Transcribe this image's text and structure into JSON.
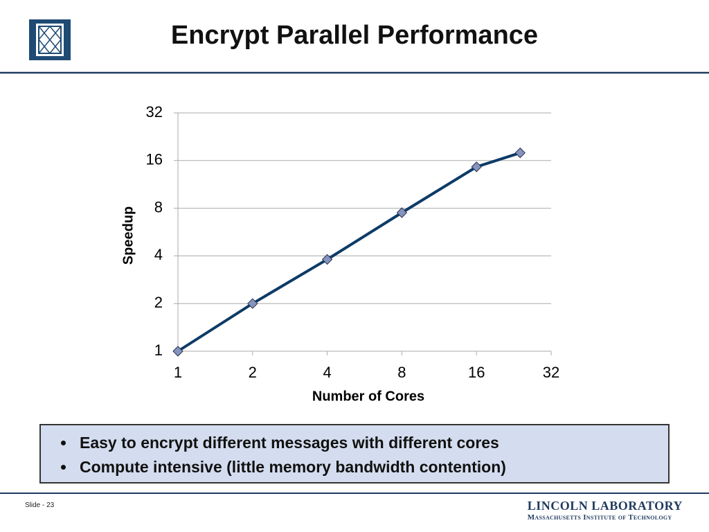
{
  "chart_data": {
    "type": "line",
    "title": "Encrypt Parallel Performance",
    "x": [
      1,
      2,
      4,
      8,
      16,
      24
    ],
    "values": [
      1,
      2,
      3.8,
      7.5,
      14.6,
      17.9
    ],
    "color": "#0d3b66",
    "marker_color": "#8593bd",
    "xlabel": "Number of Cores",
    "ylabel": "Speedup",
    "xlim": [
      1,
      32
    ],
    "ylim": [
      1,
      32
    ],
    "xticks": [
      1,
      2,
      4,
      8,
      16,
      32
    ],
    "yticks": [
      1,
      2,
      4,
      8,
      16,
      32
    ],
    "xscale": "log",
    "yscale": "log",
    "grid": true
  },
  "bullets": [
    "Easy to encrypt different messages with different cores",
    "Compute intensive (little memory bandwidth contention)"
  ],
  "footer": {
    "slide": "Slide - 23",
    "org": "LINCOLN LABORATORY",
    "org_sub": "Massachusetts Institute of Technology"
  }
}
